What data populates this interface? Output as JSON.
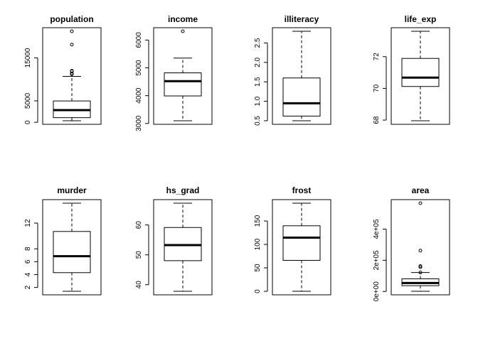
{
  "chart_data": [
    {
      "type": "box",
      "title": "population",
      "ylim": [
        365,
        21198
      ],
      "yticks": [
        0,
        5000,
        15000
      ],
      "ytick_labels": [
        "0",
        "5000",
        "15000"
      ],
      "box": {
        "min": 365,
        "q1": 1080,
        "median": 2840,
        "q3": 4970,
        "max": 10700
      },
      "outliers": [
        11200,
        11400,
        11900,
        12000,
        18100,
        21198
      ]
    },
    {
      "type": "box",
      "title": "income",
      "ylim": [
        3098,
        6315
      ],
      "yticks": [
        3000,
        4000,
        5000,
        6000
      ],
      "ytick_labels": [
        "3000",
        "4000",
        "5000",
        "6000"
      ],
      "box": {
        "min": 3098,
        "q1": 3990,
        "median": 4520,
        "q3": 4820,
        "max": 5350
      },
      "outliers": [
        6315
      ]
    },
    {
      "type": "box",
      "title": "illiteracy",
      "ylim": [
        0.5,
        2.8
      ],
      "yticks": [
        0.5,
        1.0,
        1.5,
        2.0,
        2.5
      ],
      "ytick_labels": [
        "0.5",
        "1.0",
        "1.5",
        "2.0",
        "2.5"
      ],
      "box": {
        "min": 0.5,
        "q1": 0.62,
        "median": 0.95,
        "q3": 1.6,
        "max": 2.8
      },
      "outliers": []
    },
    {
      "type": "box",
      "title": "life_exp",
      "ylim": [
        67.96,
        73.6
      ],
      "yticks": [
        68,
        70,
        72
      ],
      "ytick_labels": [
        "68",
        "70",
        "72"
      ],
      "box": {
        "min": 67.96,
        "q1": 70.12,
        "median": 70.68,
        "q3": 71.89,
        "max": 73.6
      },
      "outliers": []
    },
    {
      "type": "box",
      "title": "murder",
      "ylim": [
        1.4,
        15.1
      ],
      "yticks": [
        2,
        4,
        6,
        8,
        12
      ],
      "ytick_labels": [
        "2",
        "4",
        "6",
        "8",
        "12"
      ],
      "box": {
        "min": 1.4,
        "q1": 4.3,
        "median": 6.85,
        "q3": 10.7,
        "max": 15.1
      },
      "outliers": []
    },
    {
      "type": "box",
      "title": "hs_grad",
      "ylim": [
        37.8,
        67.3
      ],
      "yticks": [
        40,
        50,
        60
      ],
      "ytick_labels": [
        "40",
        "50",
        "60"
      ],
      "box": {
        "min": 37.8,
        "q1": 48.05,
        "median": 53.25,
        "q3": 59.15,
        "max": 67.3
      },
      "outliers": []
    },
    {
      "type": "box",
      "title": "frost",
      "ylim": [
        0,
        188
      ],
      "yticks": [
        0,
        50,
        100,
        150
      ],
      "ytick_labels": [
        "0",
        "50",
        "100",
        "150"
      ],
      "box": {
        "min": 0,
        "q1": 66,
        "median": 114.5,
        "q3": 139.75,
        "max": 188
      },
      "outliers": []
    },
    {
      "type": "box",
      "title": "area",
      "ylim": [
        1049,
        566432
      ],
      "yticks": [
        0,
        200000,
        400000
      ],
      "ytick_labels": [
        "0e+00",
        "2e+05",
        "4e+05"
      ],
      "box": {
        "min": 1049,
        "q1": 36985,
        "median": 54277,
        "q3": 81163,
        "max": 121412
      },
      "outliers": [
        122000,
        156000,
        163000,
        262000,
        566432
      ]
    }
  ]
}
